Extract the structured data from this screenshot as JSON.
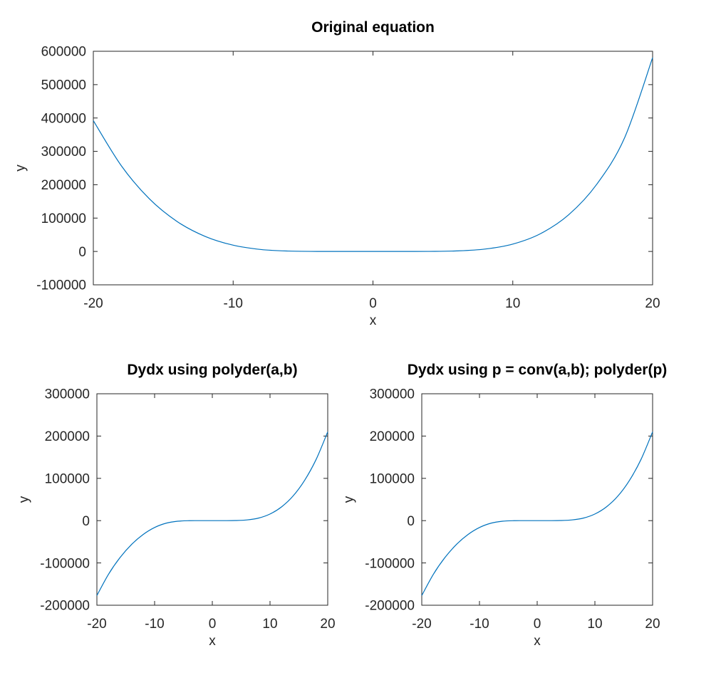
{
  "chart_data": [
    {
      "type": "line",
      "title": "Original equation",
      "xlabel": "x",
      "ylabel": "y",
      "xlim": [
        -20,
        20
      ],
      "ylim": [
        -100000,
        600000
      ],
      "xticks": [
        -20,
        -10,
        0,
        10,
        20
      ],
      "yticks": [
        -100000,
        0,
        100000,
        200000,
        300000,
        400000,
        500000,
        600000
      ],
      "grid": false,
      "color": "#0072bd",
      "series": [
        {
          "x": [
            -20,
            -18,
            -16,
            -14,
            -12,
            -10,
            -8,
            -6,
            -4,
            -2,
            0,
            2,
            4,
            6,
            8,
            10,
            12,
            14,
            16,
            18,
            20
          ],
          "y": [
            392000,
            257000,
            158000,
            89500,
            45100,
            18800,
            5800,
            1200,
            100,
            0,
            0,
            40,
            230,
            1600,
            7100,
            22100,
            53700,
            110000,
            201000,
            341000,
            581000
          ]
        }
      ]
    },
    {
      "type": "line",
      "title": "Dydx using polyder(a,b)",
      "xlabel": "x",
      "ylabel": "y",
      "xlim": [
        -20,
        20
      ],
      "ylim": [
        -200000,
        300000
      ],
      "xticks": [
        -20,
        -10,
        0,
        10,
        20
      ],
      "yticks": [
        -200000,
        -100000,
        0,
        100000,
        200000,
        300000
      ],
      "grid": false,
      "color": "#0072bd",
      "series": [
        {
          "x": [
            -20,
            -18,
            -16,
            -14,
            -12,
            -10,
            -8,
            -6,
            -4,
            -2,
            0,
            2,
            4,
            6,
            8,
            10,
            12,
            14,
            16,
            18,
            20
          ],
          "y": [
            -177000,
            -127000,
            -87500,
            -56400,
            -32900,
            -16200,
            -6000,
            -1400,
            -100,
            0,
            0,
            40,
            300,
            1700,
            6000,
            15700,
            32600,
            58400,
            95400,
            145000,
            210000
          ]
        }
      ]
    },
    {
      "type": "line",
      "title": "Dydx using p = conv(a,b); polyder(p)",
      "xlabel": "x",
      "ylabel": "y",
      "xlim": [
        -20,
        20
      ],
      "ylim": [
        -200000,
        300000
      ],
      "xticks": [
        -20,
        -10,
        0,
        10,
        20
      ],
      "yticks": [
        -200000,
        -100000,
        0,
        100000,
        200000,
        300000
      ],
      "grid": false,
      "color": "#0072bd",
      "series": [
        {
          "x": [
            -20,
            -18,
            -16,
            -14,
            -12,
            -10,
            -8,
            -6,
            -4,
            -2,
            0,
            2,
            4,
            6,
            8,
            10,
            12,
            14,
            16,
            18,
            20
          ],
          "y": [
            -177000,
            -127000,
            -87500,
            -56400,
            -32900,
            -16200,
            -6000,
            -1400,
            -100,
            0,
            0,
            40,
            300,
            1700,
            6000,
            15700,
            32600,
            58400,
            95400,
            145000,
            210000
          ]
        }
      ]
    }
  ]
}
